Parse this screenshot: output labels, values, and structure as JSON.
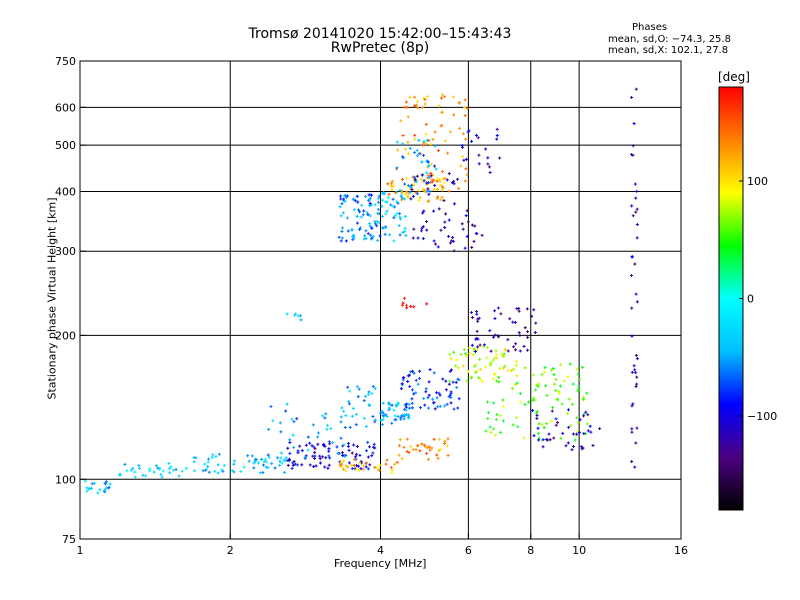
{
  "chart_data": {
    "type": "scatter",
    "title": "Tromsø 20141020 15:42:00–15:43:43",
    "subtitle": "RwPretec (8p)",
    "xlabel": "Frequency [MHz]",
    "ylabel": "Stationary phase Virtual Height [km]",
    "x_scale": "log",
    "y_scale": "log",
    "xlim": [
      1,
      16
    ],
    "ylim": [
      75,
      750
    ],
    "x_ticks": [
      1,
      2,
      4,
      6,
      8,
      10,
      16
    ],
    "x_tick_labels": [
      "1",
      "2",
      "4",
      "6",
      "8",
      "10",
      "16"
    ],
    "y_ticks": [
      75,
      100,
      200,
      300,
      400,
      500,
      600,
      750
    ],
    "y_tick_labels": [
      "75",
      "100",
      "200",
      "300",
      "400",
      "500",
      "600",
      "750"
    ],
    "x_grid": [
      2,
      4,
      6,
      8,
      10
    ],
    "y_grid": [
      100,
      200,
      300,
      400,
      500,
      600
    ],
    "grid": true,
    "phases_header": "Phases",
    "phases_stats": [
      "mean, sd,O: −74.3, 25.8",
      "mean, sd,X: 102.1, 27.8"
    ],
    "colorbar": {
      "label": "[deg]",
      "range": [
        -180,
        180
      ],
      "tick_values": [
        100,
        0,
        -100
      ],
      "tick_labels": [
        "100",
        "0",
        "−100"
      ],
      "colormap": "rainbow",
      "stops": [
        "#000000",
        "#4b0082",
        "#0000ff",
        "#00bfff",
        "#00ffff",
        "#00ff00",
        "#ffff00",
        "#ff8000",
        "#ff0000"
      ]
    },
    "clusters": [
      {
        "x_range": [
          1.0,
          1.15
        ],
        "y_range": [
          93,
          100
        ],
        "phase": -40,
        "count": 20
      },
      {
        "x_range": [
          1.2,
          1.6
        ],
        "y_range": [
          100,
          108
        ],
        "phase": -30,
        "count": 30
      },
      {
        "x_range": [
          1.6,
          2.6
        ],
        "y_range": [
          103,
          113
        ],
        "phase": -40,
        "count": 60
      },
      {
        "x_range": [
          2.6,
          3.9
        ],
        "y_range": [
          105,
          120
        ],
        "phase": -100,
        "count": 90
      },
      {
        "x_range": [
          2.3,
          3.5
        ],
        "y_range": [
          110,
          145
        ],
        "phase": -50,
        "count": 40
      },
      {
        "x_range": [
          3.4,
          4.1
        ],
        "y_range": [
          128,
          160
        ],
        "phase": -40,
        "count": 30
      },
      {
        "x_range": [
          3.3,
          4.4
        ],
        "y_range": [
          103,
          110
        ],
        "phase": 120,
        "count": 30
      },
      {
        "x_range": [
          4.3,
          5.5
        ],
        "y_range": [
          110,
          122
        ],
        "phase": 130,
        "count": 35
      },
      {
        "x_range": [
          4.0,
          4.6
        ],
        "y_range": [
          130,
          145
        ],
        "phase": -40,
        "count": 45
      },
      {
        "x_range": [
          4.4,
          5.8
        ],
        "y_range": [
          140,
          170
        ],
        "phase": -80,
        "count": 70
      },
      {
        "x_range": [
          5.5,
          7.5
        ],
        "y_range": [
          160,
          190
        ],
        "phase": 80,
        "count": 60
      },
      {
        "x_range": [
          6.0,
          8.2
        ],
        "y_range": [
          185,
          230
        ],
        "phase": -120,
        "count": 50
      },
      {
        "x_range": [
          6.5,
          10.5
        ],
        "y_range": [
          120,
          175
        ],
        "phase": 60,
        "count": 100
      },
      {
        "x_range": [
          8.0,
          11.0
        ],
        "y_range": [
          115,
          140
        ],
        "phase": -110,
        "count": 40
      },
      {
        "x_range": [
          3.3,
          4.0
        ],
        "y_range": [
          315,
          395
        ],
        "phase": -60,
        "count": 80
      },
      {
        "x_range": [
          3.9,
          4.5
        ],
        "y_range": [
          315,
          400
        ],
        "phase": -40,
        "count": 50
      },
      {
        "x_range": [
          4.1,
          5.4
        ],
        "y_range": [
          380,
          430
        ],
        "phase": 120,
        "count": 60
      },
      {
        "x_range": [
          4.3,
          6.0
        ],
        "y_range": [
          400,
          640
        ],
        "phase": 130,
        "count": 80
      },
      {
        "x_range": [
          4.3,
          5.2
        ],
        "y_range": [
          390,
          520
        ],
        "phase": -50,
        "count": 40
      },
      {
        "x_range": [
          4.6,
          6.4
        ],
        "y_range": [
          300,
          440
        ],
        "phase": -120,
        "count": 60
      },
      {
        "x_range": [
          5.8,
          7.0
        ],
        "y_range": [
          430,
          540
        ],
        "phase": -110,
        "count": 20
      },
      {
        "x_range": [
          4.4,
          5.0
        ],
        "y_range": [
          225,
          240
        ],
        "phase": 170,
        "count": 8
      },
      {
        "x_range": [
          2.6,
          2.8
        ],
        "y_range": [
          215,
          225
        ],
        "phase": -40,
        "count": 6
      },
      {
        "x_range": [
          12.7,
          13.1
        ],
        "y_range": [
          100,
          660
        ],
        "phase": -120,
        "count": 40
      }
    ]
  }
}
